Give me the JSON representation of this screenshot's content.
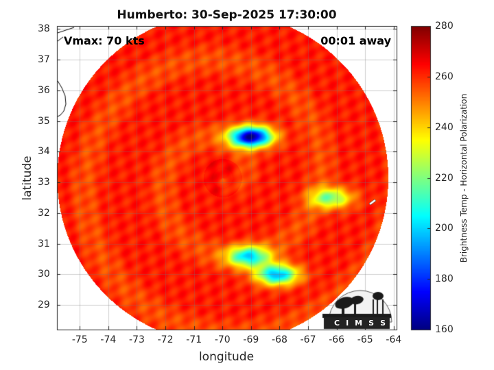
{
  "title": "Humberto: 30-Sep-2025 17:30:00",
  "annotations": {
    "vmax": "Vmax: 70 kts",
    "away": "00:01 away"
  },
  "chart_data": {
    "type": "heatmap",
    "xlabel": "longitude",
    "ylabel": "latitude",
    "xlim": [
      -75.8,
      -63.9
    ],
    "ylim": [
      28.2,
      38.1
    ],
    "xticks": [
      "-75",
      "-74",
      "-73",
      "-72",
      "-71",
      "-70",
      "-69",
      "-68",
      "-67",
      "-66",
      "-65",
      "-64"
    ],
    "yticks": [
      "29",
      "30",
      "31",
      "32",
      "33",
      "34",
      "35",
      "36",
      "37",
      "38"
    ],
    "grid": true,
    "colorbar": {
      "label": "Brightness Temp - Horizontal Polarization",
      "range": [
        160,
        280
      ],
      "ticks": [
        "160",
        "180",
        "200",
        "220",
        "240",
        "260",
        "280"
      ],
      "colormap": "jet"
    },
    "swath": {
      "center_lon": -70.0,
      "center_lat": 33.15,
      "radius_deg": 5.8
    },
    "cold_features": [
      {
        "lon": -69.0,
        "lat": 34.5,
        "min_temp": 162
      },
      {
        "lon": -68.1,
        "lat": 30.0,
        "min_temp": 195
      },
      {
        "lon": -69.1,
        "lat": 30.6,
        "min_temp": 205
      },
      {
        "lon": -66.2,
        "lat": 32.5,
        "min_temp": 220
      }
    ]
  },
  "logo": {
    "letters": [
      "C",
      "I",
      "M",
      "S",
      "S"
    ]
  }
}
